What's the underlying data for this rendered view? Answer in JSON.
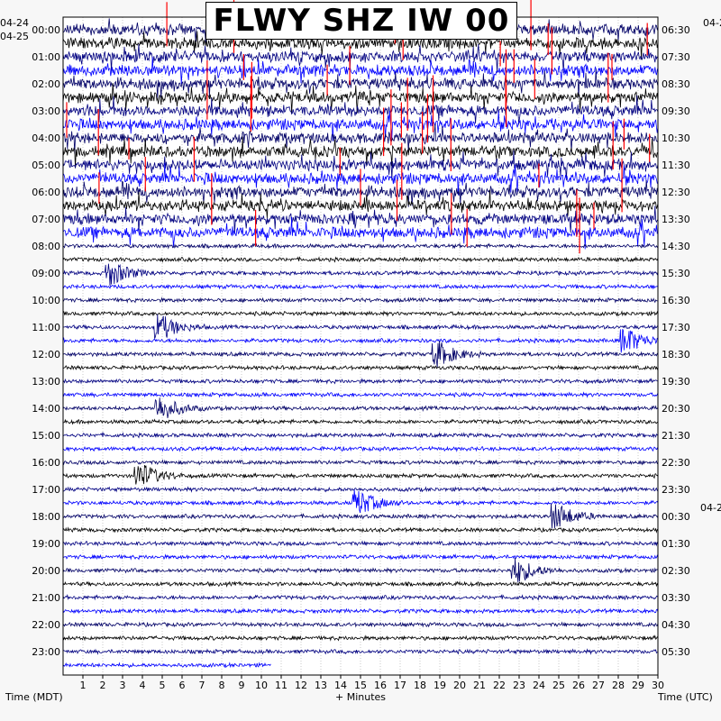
{
  "title": "FLWY SHZ IW 00",
  "left_dates": [
    "04-24",
    "04-25"
  ],
  "right_dates": [
    "04-2",
    "04-2"
  ],
  "axis": {
    "left_label": "Time (MDT)",
    "bottom_label": "+ Minutes",
    "right_label": "Time (UTC)"
  },
  "colors": {
    "trace_dark": "#000066",
    "trace_black": "#000000",
    "trace_blue": "#0000ff",
    "trace_navy": "#000080",
    "event_red": "#ff0000",
    "background": "#ffffff"
  },
  "chart_data": {
    "type": "helicorder",
    "x_unit": "minutes",
    "xlim": [
      0,
      30
    ],
    "x_ticks": [
      "1",
      "2",
      "3",
      "4",
      "5",
      "6",
      "7",
      "8",
      "9",
      "10",
      "11",
      "12",
      "13",
      "14",
      "15",
      "16",
      "17",
      "18",
      "19",
      "20",
      "21",
      "22",
      "23",
      "24",
      "25",
      "26",
      "27",
      "28",
      "29",
      "30"
    ],
    "left_ticks": [
      "00:00",
      "01:00",
      "02:00",
      "03:00",
      "04:00",
      "05:00",
      "06:00",
      "07:00",
      "08:00",
      "09:00",
      "10:00",
      "11:00",
      "12:00",
      "13:00",
      "14:00",
      "15:00",
      "16:00",
      "17:00",
      "18:00",
      "19:00",
      "20:00",
      "21:00",
      "22:00",
      "23:00"
    ],
    "right_ticks": [
      "06:30",
      "07:30",
      "08:30",
      "09:30",
      "10:30",
      "11:30",
      "12:30",
      "13:30",
      "14:30",
      "15:30",
      "16:30",
      "17:30",
      "18:30",
      "19:30",
      "20:30",
      "21:30",
      "22:30",
      "23:30",
      "00:30",
      "01:30",
      "02:30",
      "03:30",
      "04:30",
      "05:30"
    ],
    "line_duration_minutes": 30,
    "trace_count": 48,
    "last_trace_end_minute": 10.5,
    "high_amplitude_period": [
      "00:00",
      "08:00"
    ],
    "events": [
      {
        "time": "09:00",
        "minute": 2.5
      },
      {
        "time": "11:00",
        "minute": 5
      },
      {
        "time": "11:30",
        "minute": 28.5
      },
      {
        "time": "12:00",
        "minute": 19
      },
      {
        "time": "14:00",
        "minute": 5
      },
      {
        "time": "16:30",
        "minute": 4
      },
      {
        "time": "17:30",
        "minute": 15
      },
      {
        "time": "18:00",
        "minute": 25
      },
      {
        "time": "20:00",
        "minute": 23
      }
    ]
  }
}
